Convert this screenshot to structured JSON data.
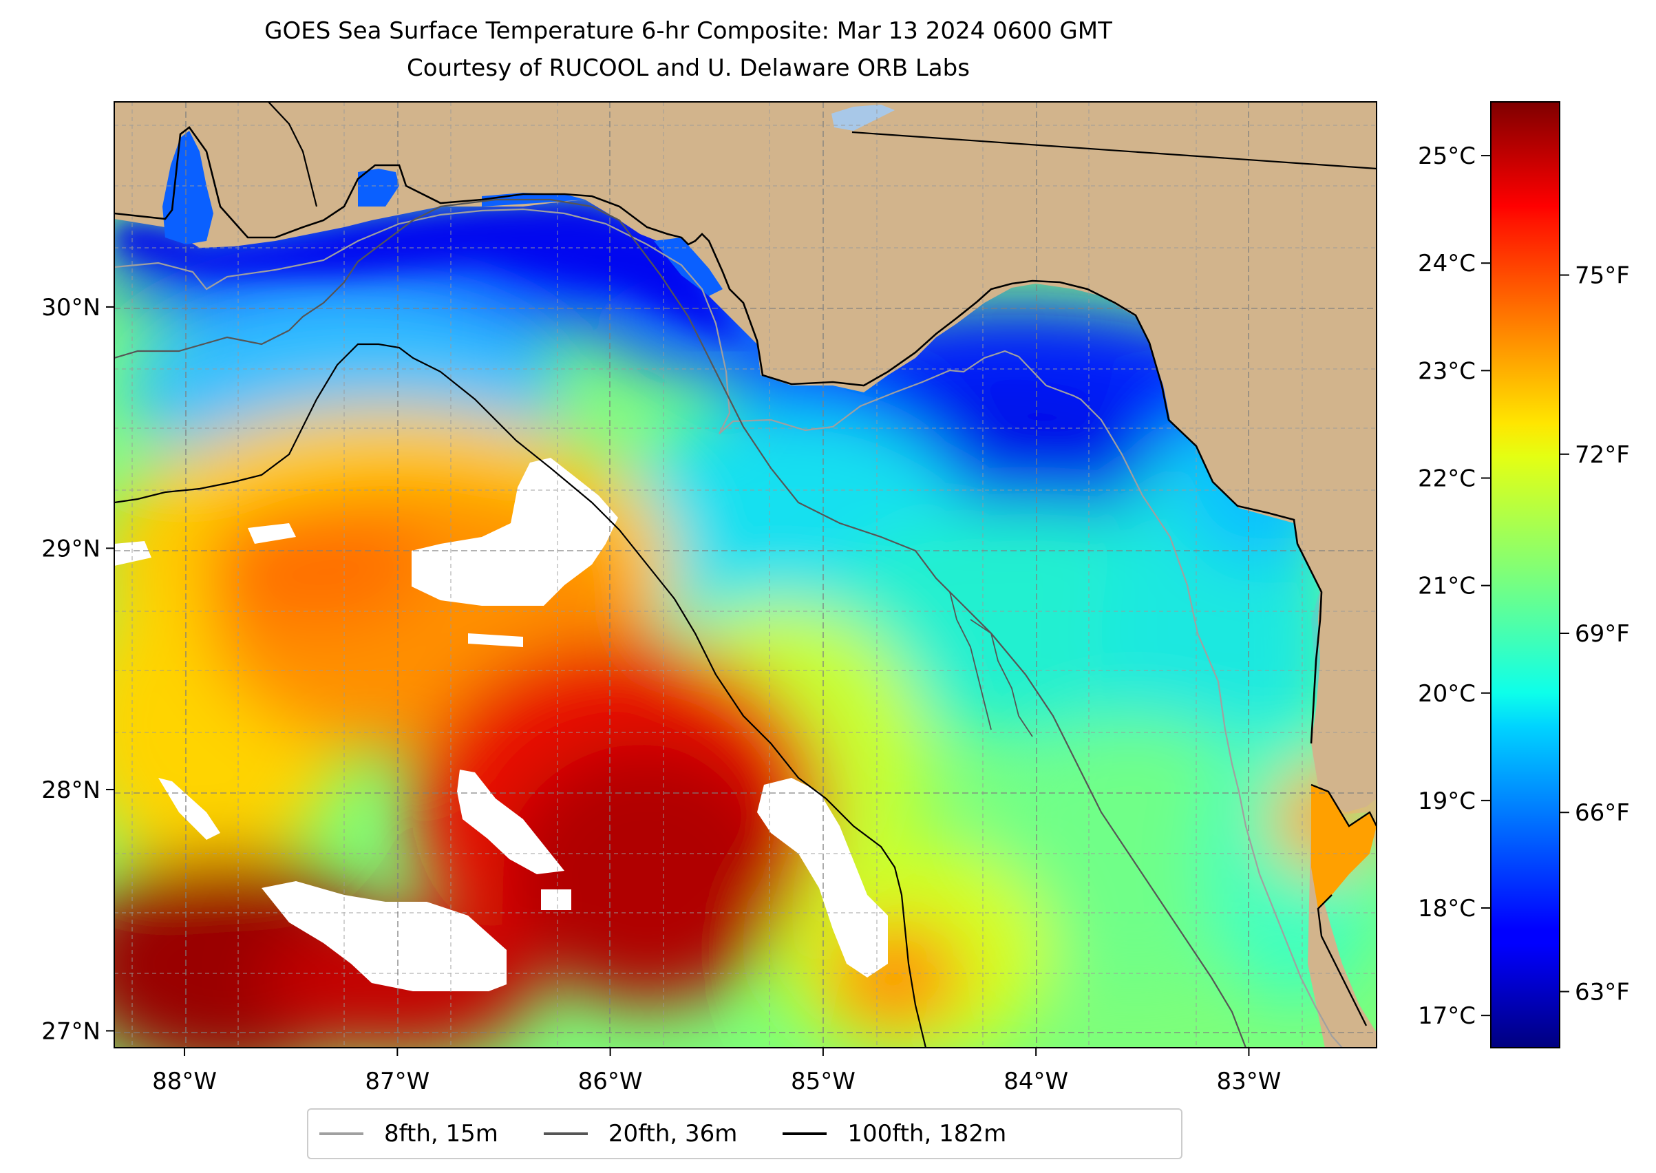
{
  "title": {
    "line1": "GOES Sea Surface Temperature 6-hr Composite: Mar 13 2024 0600 GMT",
    "line2": "Courtesy of RUCOOL and U. Delaware ORB Labs"
  },
  "map": {
    "lon_range": [
      -88.33,
      -82.4
    ],
    "lat_range": [
      26.93,
      30.85
    ],
    "lon_ticks": [
      {
        "value": -88,
        "label": "88°W"
      },
      {
        "value": -87,
        "label": "87°W"
      },
      {
        "value": -86,
        "label": "86°W"
      },
      {
        "value": -85,
        "label": "85°W"
      },
      {
        "value": -84,
        "label": "84°W"
      },
      {
        "value": -83,
        "label": "83°W"
      }
    ],
    "lat_ticks": [
      {
        "value": 27,
        "label": "27°N"
      },
      {
        "value": 28,
        "label": "28°N"
      },
      {
        "value": 29,
        "label": "29°N"
      },
      {
        "value": 30,
        "label": "30°N"
      }
    ],
    "grid": "dashed",
    "land_color": "#d2b48c",
    "cloud_color": "#ffffff"
  },
  "colorbar": {
    "colormap": "jet",
    "range_c": [
      16.7,
      25.5
    ],
    "celsius_ticks": [
      {
        "value": 17,
        "label": "17°C"
      },
      {
        "value": 18,
        "label": "18°C"
      },
      {
        "value": 19,
        "label": "19°C"
      },
      {
        "value": 20,
        "label": "20°C"
      },
      {
        "value": 21,
        "label": "21°C"
      },
      {
        "value": 22,
        "label": "22°C"
      },
      {
        "value": 23,
        "label": "23°C"
      },
      {
        "value": 24,
        "label": "24°C"
      },
      {
        "value": 25,
        "label": "25°C"
      }
    ],
    "fahrenheit_ticks": [
      {
        "value": 63,
        "label": "63°F"
      },
      {
        "value": 66,
        "label": "66°F"
      },
      {
        "value": 69,
        "label": "69°F"
      },
      {
        "value": 72,
        "label": "72°F"
      },
      {
        "value": 75,
        "label": "75°F"
      }
    ]
  },
  "legend": {
    "placement": "bottom-center",
    "items": [
      {
        "label": "8fth, 15m",
        "color": "#a0a0a0"
      },
      {
        "label": "20fth, 36m",
        "color": "#555555"
      },
      {
        "label": "100fth, 182m",
        "color": "#000000"
      }
    ]
  }
}
